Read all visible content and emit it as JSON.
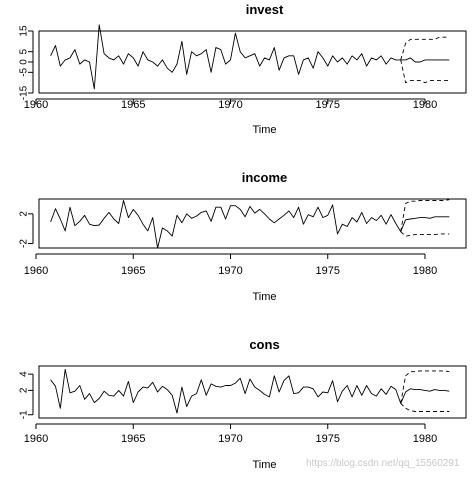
{
  "watermark": "https://blog.csdn.net/qq_15560291",
  "chart_data": [
    {
      "type": "line",
      "title": "invest",
      "xlabel": "Time",
      "ylabel": "",
      "xlim": [
        1960,
        1982
      ],
      "ylim": [
        -15,
        15
      ],
      "xticks": [
        1960,
        1965,
        1970,
        1975,
        1980
      ],
      "yticks": [
        -15,
        -5,
        0,
        5,
        15
      ],
      "grid": false,
      "series": [
        {
          "style": "solid",
          "x": [
            1960.75,
            1961.0,
            1961.25,
            1961.5,
            1961.75,
            1962.0,
            1962.25,
            1962.5,
            1962.75,
            1963.0,
            1963.25,
            1963.5,
            1963.75,
            1964.0,
            1964.25,
            1964.5,
            1964.75,
            1965.0,
            1965.25,
            1965.5,
            1965.75,
            1966.0,
            1966.25,
            1966.5,
            1966.75,
            1967.0,
            1967.25,
            1967.5,
            1967.75,
            1968.0,
            1968.25,
            1968.5,
            1968.75,
            1969.0,
            1969.25,
            1969.5,
            1969.75,
            1970.0,
            1970.25,
            1970.5,
            1970.75,
            1971.0,
            1971.25,
            1971.5,
            1971.75,
            1972.0,
            1972.25,
            1972.5,
            1972.75,
            1973.0,
            1973.25,
            1973.5,
            1973.75,
            1974.0,
            1974.25,
            1974.5,
            1974.75,
            1975.0,
            1975.25,
            1975.5,
            1975.75,
            1976.0,
            1976.25,
            1976.5,
            1976.75,
            1977.0,
            1977.25,
            1977.5,
            1977.75,
            1978.0,
            1978.25,
            1978.5,
            1978.75,
            1979.0,
            1979.25,
            1979.5,
            1979.75,
            1980.0,
            1980.25,
            1980.5,
            1980.75,
            1981.0,
            1981.25
          ],
          "y": [
            3,
            8,
            -2,
            1,
            2,
            6,
            -1,
            1,
            0,
            -13,
            18,
            4,
            2,
            1,
            3,
            -1,
            4,
            2,
            -2,
            5,
            1,
            0,
            -2,
            1,
            -3,
            -5,
            -1,
            10,
            -6,
            5,
            3,
            4,
            6,
            -5,
            7,
            6,
            -1,
            1,
            14,
            5,
            2,
            3,
            4,
            -2,
            2,
            1,
            7,
            -4,
            2,
            3,
            3,
            -6,
            1,
            2,
            -3,
            5,
            2,
            -2,
            3,
            0,
            2,
            -1,
            3,
            1,
            4,
            -2,
            2,
            1,
            3,
            -1,
            2,
            1,
            1,
            1,
            2,
            0,
            0,
            1,
            1,
            1,
            1,
            1,
            1
          ]
        },
        {
          "style": "dashed",
          "x": [
            1978.75,
            1979.0,
            1979.25,
            1979.5,
            1979.75,
            1980.0,
            1980.25,
            1980.5,
            1980.75,
            1981.0,
            1981.25
          ],
          "y": [
            1,
            9,
            11,
            11,
            11,
            11,
            11,
            11,
            12,
            12,
            12
          ]
        },
        {
          "style": "dashed",
          "x": [
            1978.75,
            1979.0,
            1979.25,
            1979.5,
            1979.75,
            1980.0,
            1980.25,
            1980.5,
            1980.75,
            1981.0,
            1981.25
          ],
          "y": [
            1,
            -10,
            -9,
            -9,
            -9,
            -10,
            -9,
            -9,
            -9,
            -9,
            -9
          ]
        }
      ]
    },
    {
      "type": "line",
      "title": "income",
      "xlabel": "Time",
      "ylabel": "",
      "xlim": [
        1960,
        1982
      ],
      "ylim": [
        -2.6,
        4
      ],
      "xticks": [
        1960,
        1965,
        1970,
        1975,
        1980
      ],
      "yticks": [
        -2,
        2
      ],
      "grid": false,
      "series": [
        {
          "style": "solid",
          "x": [
            1960.75,
            1961.0,
            1961.25,
            1961.5,
            1961.75,
            1962.0,
            1962.25,
            1962.5,
            1962.75,
            1963.0,
            1963.25,
            1963.5,
            1963.75,
            1964.0,
            1964.25,
            1964.5,
            1964.75,
            1965.0,
            1965.25,
            1965.5,
            1965.75,
            1966.0,
            1966.25,
            1966.5,
            1966.75,
            1967.0,
            1967.25,
            1967.5,
            1967.75,
            1968.0,
            1968.25,
            1968.5,
            1968.75,
            1969.0,
            1969.25,
            1969.5,
            1969.75,
            1970.0,
            1970.25,
            1970.5,
            1970.75,
            1971.0,
            1971.25,
            1971.5,
            1971.75,
            1972.0,
            1972.25,
            1972.5,
            1972.75,
            1973.0,
            1973.25,
            1973.5,
            1973.75,
            1974.0,
            1974.25,
            1974.5,
            1974.75,
            1975.0,
            1975.25,
            1975.5,
            1975.75,
            1976.0,
            1976.25,
            1976.5,
            1976.75,
            1977.0,
            1977.25,
            1977.5,
            1977.75,
            1978.0,
            1978.25,
            1978.5,
            1978.75,
            1979.0,
            1979.25,
            1979.5,
            1979.75,
            1980.0,
            1980.25,
            1980.5,
            1980.75,
            1981.0,
            1981.25
          ],
          "y": [
            0.9,
            2.7,
            1.3,
            -0.3,
            2.9,
            0.4,
            1.0,
            1.8,
            0.6,
            0.4,
            0.5,
            1.4,
            2.2,
            1.3,
            0.7,
            3.8,
            1.5,
            2.6,
            1.8,
            0.6,
            -0.3,
            1.5,
            -2.6,
            0.1,
            -0.3,
            -1.0,
            1.8,
            0.8,
            2.0,
            1.4,
            1.7,
            2.2,
            2.4,
            1.0,
            2.9,
            2.9,
            1.3,
            3.1,
            3.1,
            2.6,
            1.6,
            3.0,
            2.1,
            2.6,
            2.0,
            1.3,
            0.8,
            1.3,
            1.8,
            2.4,
            1.5,
            2.9,
            0.6,
            1.9,
            1.6,
            2.9,
            1.5,
            1.8,
            3.2,
            -0.7,
            0.6,
            0.3,
            1.5,
            0.9,
            2.2,
            0.7,
            1.5,
            1.1,
            1.8,
            0.6,
            1.9,
            0.7,
            -0.4,
            1.2,
            1.3,
            1.4,
            1.5,
            1.5,
            1.4,
            1.6,
            1.6,
            1.6,
            1.6
          ]
        },
        {
          "style": "dashed",
          "x": [
            1978.75,
            1979.0,
            1979.25,
            1979.5,
            1979.75,
            1980.0,
            1980.25,
            1980.5,
            1980.75,
            1981.0,
            1981.25
          ],
          "y": [
            -0.4,
            3.4,
            3.7,
            3.7,
            3.8,
            3.8,
            3.8,
            3.8,
            3.8,
            3.8,
            3.9
          ]
        },
        {
          "style": "dashed",
          "x": [
            1978.75,
            1979.0,
            1979.25,
            1979.5,
            1979.75,
            1980.0,
            1980.25,
            1980.5,
            1980.75,
            1981.0,
            1981.25
          ],
          "y": [
            -0.4,
            -1.0,
            -0.9,
            -0.8,
            -0.8,
            -0.8,
            -0.8,
            -0.8,
            -0.7,
            -0.7,
            -0.7
          ]
        }
      ]
    },
    {
      "type": "line",
      "title": "cons",
      "xlabel": "Time",
      "ylabel": "",
      "xlim": [
        1960,
        1982
      ],
      "ylim": [
        -1.4,
        5
      ],
      "xticks": [
        1960,
        1965,
        1970,
        1975,
        1980
      ],
      "yticks": [
        -1,
        2,
        4
      ],
      "grid": false,
      "series": [
        {
          "style": "solid",
          "x": [
            1960.75,
            1961.0,
            1961.25,
            1961.5,
            1961.75,
            1962.0,
            1962.25,
            1962.5,
            1962.75,
            1963.0,
            1963.25,
            1963.5,
            1963.75,
            1964.0,
            1964.25,
            1964.5,
            1964.75,
            1965.0,
            1965.25,
            1965.5,
            1965.75,
            1966.0,
            1966.25,
            1966.5,
            1966.75,
            1967.0,
            1967.25,
            1967.5,
            1967.75,
            1968.0,
            1968.25,
            1968.5,
            1968.75,
            1969.0,
            1969.25,
            1969.5,
            1969.75,
            1970.0,
            1970.25,
            1970.5,
            1970.75,
            1971.0,
            1971.25,
            1971.5,
            1971.75,
            1972.0,
            1972.25,
            1972.5,
            1972.75,
            1973.0,
            1973.25,
            1973.5,
            1973.75,
            1974.0,
            1974.25,
            1974.5,
            1974.75,
            1975.0,
            1975.25,
            1975.5,
            1975.75,
            1976.0,
            1976.25,
            1976.5,
            1976.75,
            1977.0,
            1977.25,
            1977.5,
            1977.75,
            1978.0,
            1978.25,
            1978.5,
            1978.75,
            1979.0,
            1979.25,
            1979.5,
            1979.75,
            1980.0,
            1980.25,
            1980.5,
            1980.75,
            1981.0,
            1981.25
          ],
          "y": [
            3.3,
            2.5,
            -0.2,
            4.6,
            1.7,
            1.9,
            2.6,
            0.9,
            1.6,
            0.5,
            1.0,
            1.9,
            1.4,
            1.3,
            2.0,
            1.3,
            3.1,
            0.5,
            1.8,
            2.4,
            2.3,
            3.0,
            1.8,
            2.5,
            2.1,
            1.4,
            -0.8,
            2.4,
            0.0,
            1.3,
            1.6,
            3.3,
            1.4,
            2.8,
            2.5,
            2.4,
            2.6,
            2.6,
            2.9,
            3.5,
            1.6,
            3.4,
            2.4,
            2.0,
            1.5,
            1.2,
            3.8,
            1.8,
            3.2,
            3.8,
            1.6,
            1.7,
            2.4,
            2.4,
            2.2,
            1.2,
            1.8,
            1.7,
            3.2,
            0.6,
            1.9,
            2.6,
            1.2,
            2.6,
            1.4,
            2.6,
            1.6,
            1.3,
            2.2,
            1.5,
            2.5,
            2.1,
            0.4,
            1.8,
            2.2,
            2.1,
            2.1,
            2.0,
            1.9,
            2.1,
            2.0,
            2.0,
            1.9
          ]
        },
        {
          "style": "dashed",
          "x": [
            1978.75,
            1979.0,
            1979.25,
            1979.5,
            1979.75,
            1980.0,
            1980.25,
            1980.5,
            1980.75,
            1981.0,
            1981.25
          ],
          "y": [
            0.4,
            3.8,
            4.3,
            4.3,
            4.4,
            4.4,
            4.4,
            4.4,
            4.4,
            4.4,
            4.3
          ]
        },
        {
          "style": "dashed",
          "x": [
            1978.75,
            1979.0,
            1979.25,
            1979.5,
            1979.75,
            1980.0,
            1980.25,
            1980.5,
            1980.75,
            1981.0,
            1981.25
          ],
          "y": [
            0.4,
            -0.2,
            -0.5,
            -0.6,
            -0.6,
            -0.6,
            -0.6,
            -0.6,
            -0.6,
            -0.6,
            -0.6
          ]
        }
      ]
    }
  ]
}
